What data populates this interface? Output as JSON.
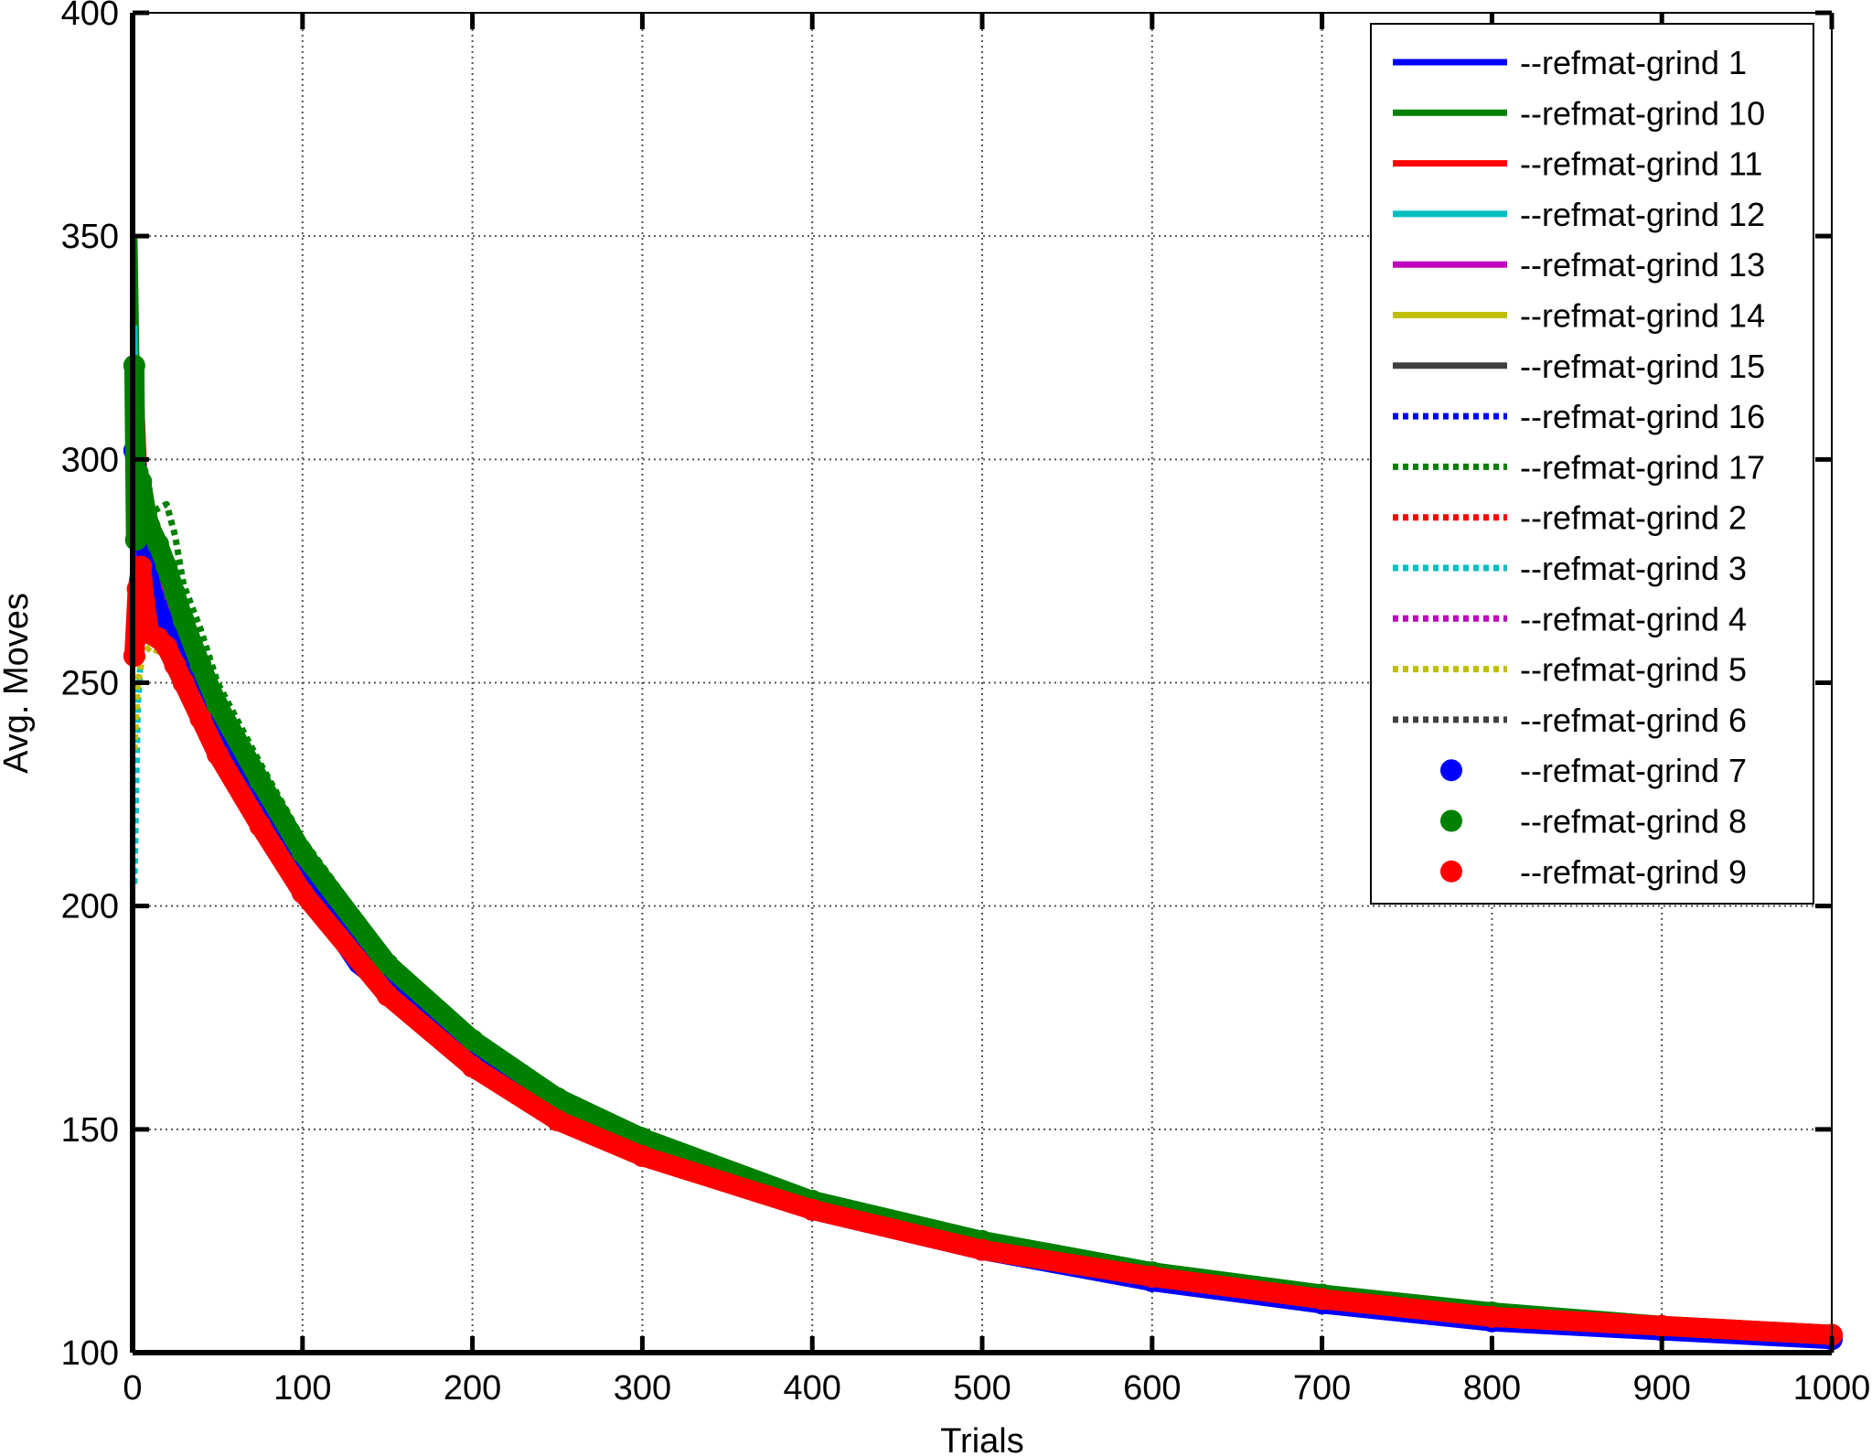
{
  "chart_data": {
    "type": "line",
    "xlabel": "Trials",
    "ylabel": "Avg. Moves",
    "xlim": [
      0,
      1000
    ],
    "ylim": [
      100,
      400
    ],
    "xticks": [
      "0",
      "100",
      "200",
      "300",
      "400",
      "500",
      "600",
      "700",
      "800",
      "900",
      "1000"
    ],
    "yticks": [
      "100",
      "150",
      "200",
      "250",
      "300",
      "350",
      "400"
    ],
    "grid": true,
    "legend_position": "top-right",
    "series": [
      {
        "name": "--refmat-grind 1",
        "color": "#0000ff",
        "style": "solid",
        "x": [
          1,
          5,
          10,
          20,
          30,
          50,
          75,
          100,
          130,
          150,
          200,
          250,
          300,
          400,
          500,
          600,
          700,
          800,
          900,
          1000
        ],
        "y": [
          300,
          290,
          272,
          262,
          253,
          237,
          218,
          203,
          186,
          180,
          165,
          153,
          145,
          131,
          122,
          115,
          110,
          106,
          104,
          102
        ]
      },
      {
        "name": "--refmat-grind 10",
        "color": "#008000",
        "style": "solid",
        "x": [
          1,
          3,
          6,
          10,
          20,
          30,
          50,
          75,
          100,
          150,
          200,
          250,
          300,
          400,
          500,
          600,
          700,
          800,
          900,
          1000
        ],
        "y": [
          350,
          300,
          290,
          283,
          270,
          260,
          245,
          228,
          211,
          186,
          169,
          156,
          147,
          134,
          125,
          118,
          113,
          109,
          106,
          103
        ]
      },
      {
        "name": "--refmat-grind 11",
        "color": "#ff0000",
        "style": "solid",
        "x": [
          1,
          5,
          8,
          15,
          25,
          40,
          60,
          100,
          150,
          200,
          250,
          300,
          400,
          500,
          600,
          700,
          800,
          900,
          1000
        ],
        "y": [
          270,
          313,
          285,
          268,
          258,
          247,
          232,
          206,
          182,
          167,
          154,
          146,
          133,
          124,
          117,
          112,
          108,
          106,
          103
        ]
      },
      {
        "name": "--refmat-grind 12",
        "color": "#00bfbf",
        "style": "solid",
        "x": [
          1,
          2,
          5,
          10,
          20,
          30,
          50,
          75,
          100,
          150,
          200,
          250,
          300,
          400,
          500,
          600,
          700,
          800,
          900,
          1000
        ],
        "y": [
          330,
          310,
          290,
          278,
          265,
          256,
          241,
          224,
          208,
          184,
          168,
          155,
          146,
          133,
          124,
          117,
          112,
          108,
          105,
          103
        ]
      },
      {
        "name": "--refmat-grind 13",
        "color": "#bf00bf",
        "style": "solid",
        "x": [
          1,
          5,
          10,
          20,
          30,
          50,
          75,
          100,
          150,
          200,
          250,
          300,
          400,
          500,
          600,
          700,
          800,
          900,
          1000
        ],
        "y": [
          285,
          282,
          276,
          268,
          258,
          244,
          227,
          211,
          186,
          169,
          156,
          147,
          134,
          125,
          118,
          112,
          109,
          106,
          103
        ]
      },
      {
        "name": "--refmat-grind 14",
        "color": "#bfbf00",
        "style": "solid",
        "x": [
          1,
          5,
          10,
          20,
          30,
          50,
          75,
          100,
          150,
          200,
          250,
          300,
          400,
          500,
          600,
          700,
          800,
          900,
          1000
        ],
        "y": [
          255,
          262,
          262,
          258,
          252,
          240,
          222,
          206,
          183,
          167,
          154,
          146,
          133,
          124,
          117,
          112,
          108,
          105,
          103
        ]
      },
      {
        "name": "--refmat-grind 15",
        "color": "#404040",
        "style": "solid",
        "x": [
          1,
          5,
          10,
          20,
          30,
          50,
          75,
          100,
          150,
          200,
          250,
          300,
          400,
          500,
          600,
          700,
          800,
          900,
          1000
        ],
        "y": [
          275,
          272,
          268,
          260,
          252,
          236,
          220,
          205,
          182,
          166,
          154,
          145,
          132,
          123,
          116,
          111,
          108,
          105,
          103
        ]
      },
      {
        "name": "--refmat-grind 16",
        "color": "#0000ff",
        "style": "dotted",
        "x": [
          1,
          5,
          10,
          20,
          30,
          50,
          75,
          100,
          150,
          200,
          250,
          300,
          400,
          500,
          600,
          700,
          800,
          900,
          1000
        ],
        "y": [
          290,
          284,
          277,
          266,
          256,
          241,
          224,
          208,
          184,
          168,
          155,
          146,
          133,
          124,
          117,
          112,
          108,
          105,
          103
        ]
      },
      {
        "name": "--refmat-grind 17",
        "color": "#008000",
        "style": "dotted",
        "x": [
          1,
          5,
          10,
          20,
          25,
          30,
          40,
          50,
          75,
          100,
          150,
          200,
          250,
          300,
          400,
          500,
          600,
          700,
          800,
          900,
          1000
        ],
        "y": [
          295,
          292,
          288,
          290,
          283,
          272,
          262,
          250,
          232,
          215,
          189,
          171,
          158,
          148,
          135,
          125,
          118,
          113,
          109,
          106,
          104
        ]
      },
      {
        "name": "--refmat-grind 2",
        "color": "#ff0000",
        "style": "dotted",
        "x": [
          1,
          5,
          10,
          20,
          30,
          50,
          75,
          100,
          150,
          200,
          250,
          300,
          400,
          500,
          600,
          700,
          800,
          900,
          1000
        ],
        "y": [
          280,
          279,
          274,
          265,
          256,
          241,
          224,
          208,
          184,
          168,
          155,
          146,
          133,
          124,
          117,
          112,
          108,
          105,
          103
        ]
      },
      {
        "name": "--refmat-grind 3",
        "color": "#00bfbf",
        "style": "dotted",
        "x": [
          1,
          3,
          6,
          10,
          20,
          30,
          50,
          75,
          100,
          150,
          200,
          250,
          300,
          400,
          500,
          600,
          700,
          800,
          900,
          1000
        ],
        "y": [
          205,
          245,
          262,
          266,
          262,
          254,
          240,
          223,
          207,
          183,
          167,
          154,
          146,
          133,
          124,
          117,
          112,
          108,
          105,
          103
        ]
      },
      {
        "name": "--refmat-grind 4",
        "color": "#bf00bf",
        "style": "dotted",
        "x": [
          1,
          5,
          10,
          20,
          30,
          50,
          75,
          100,
          150,
          200,
          250,
          300,
          400,
          500,
          600,
          700,
          800,
          900,
          1000
        ],
        "y": [
          278,
          280,
          277,
          274,
          266,
          248,
          230,
          213,
          188,
          170,
          157,
          148,
          134,
          125,
          118,
          113,
          109,
          106,
          104
        ]
      },
      {
        "name": "--refmat-grind 5",
        "color": "#bfbf00",
        "style": "dotted",
        "x": [
          1,
          3,
          6,
          10,
          20,
          30,
          50,
          75,
          100,
          150,
          200,
          250,
          300,
          400,
          500,
          600,
          700,
          800,
          900,
          1000
        ],
        "y": [
          235,
          250,
          256,
          258,
          256,
          250,
          238,
          221,
          206,
          183,
          167,
          154,
          146,
          133,
          124,
          117,
          112,
          108,
          105,
          103
        ]
      },
      {
        "name": "--refmat-grind 6",
        "color": "#404040",
        "style": "dotted",
        "x": [
          1,
          5,
          10,
          20,
          30,
          50,
          75,
          100,
          150,
          200,
          250,
          300,
          400,
          500,
          600,
          700,
          800,
          900,
          1000
        ],
        "y": [
          268,
          266,
          262,
          256,
          249,
          234,
          219,
          204,
          182,
          166,
          154,
          145,
          132,
          123,
          116,
          111,
          108,
          105,
          103
        ]
      },
      {
        "name": "--refmat-grind 7",
        "color": "#0000ff",
        "style": "marker",
        "x": [
          1,
          3,
          5,
          8,
          10,
          15,
          20,
          30,
          40,
          50,
          75,
          100,
          150,
          200,
          250,
          300,
          400,
          500,
          600,
          700,
          800,
          900,
          1000
        ],
        "y": [
          302,
          296,
          290,
          280,
          272,
          266,
          262,
          255,
          247,
          239,
          221,
          205,
          182,
          166,
          154,
          145,
          132,
          123,
          116,
          111,
          107,
          105,
          103
        ]
      },
      {
        "name": "--refmat-grind 8",
        "color": "#008000",
        "style": "marker",
        "x": [
          1,
          2,
          3,
          5,
          8,
          10,
          15,
          20,
          25,
          30,
          40,
          50,
          75,
          100,
          150,
          200,
          250,
          300,
          400,
          500,
          600,
          700,
          800,
          900,
          1000
        ],
        "y": [
          321,
          282,
          297,
          295,
          288,
          285,
          281,
          276,
          270,
          264,
          254,
          245,
          228,
          212,
          187,
          170,
          157,
          148,
          134,
          125,
          118,
          113,
          109,
          106,
          104
        ]
      },
      {
        "name": "--refmat-grind 9",
        "color": "#ff0000",
        "style": "marker",
        "x": [
          1,
          3,
          5,
          7,
          10,
          15,
          20,
          25,
          30,
          40,
          50,
          75,
          100,
          150,
          200,
          250,
          300,
          400,
          500,
          600,
          700,
          800,
          900,
          1000
        ],
        "y": [
          256,
          271,
          276,
          268,
          261,
          260,
          258,
          254,
          250,
          242,
          234,
          218,
          203,
          180,
          164,
          152,
          144,
          132,
          123,
          117,
          112,
          108,
          106,
          104
        ]
      }
    ]
  }
}
